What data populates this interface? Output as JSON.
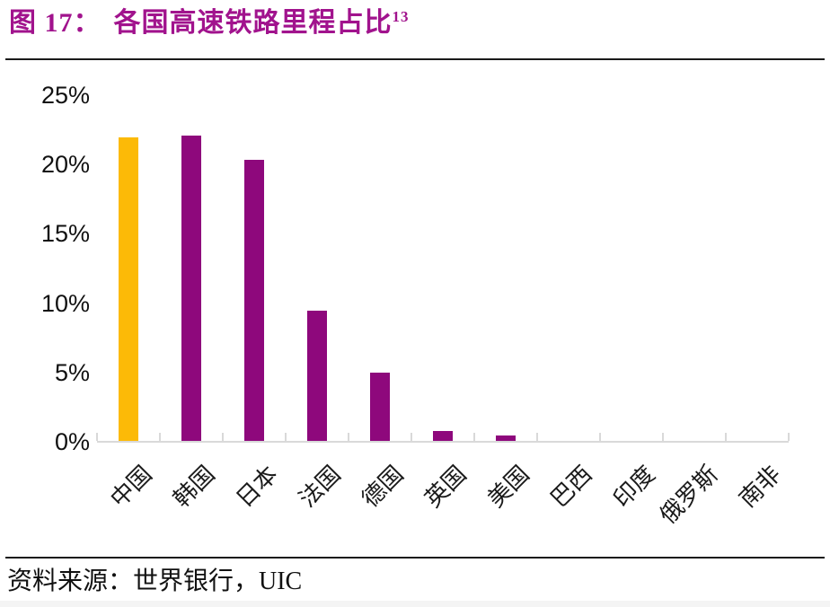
{
  "figure": {
    "title_prefix": "图 17：",
    "title_text": "各国高速铁路里程占比",
    "title_superscript": "13",
    "source_label": "资料来源：",
    "source_text": "世界银行，UIC"
  },
  "colors": {
    "title": "#A1138D",
    "bar_default": "#8E087C",
    "bar_highlight": "#FCBA07",
    "axis": "#D9D9D9",
    "text": "#111111"
  },
  "chart_data": {
    "type": "bar",
    "title": "各国高速铁路里程占比",
    "categories": [
      "中国",
      "韩国",
      "日本",
      "法国",
      "德国",
      "英国",
      "美国",
      "巴西",
      "印度",
      "俄罗斯",
      "南非"
    ],
    "values": [
      21.9,
      22.0,
      20.3,
      9.4,
      4.9,
      0.7,
      0.4,
      0,
      0,
      0,
      0
    ],
    "unit": "%",
    "highlight_index": 0,
    "y_ticks": [
      "25%",
      "20%",
      "15%",
      "10%",
      "5%",
      "0%"
    ],
    "y_tick_values": [
      25,
      20,
      15,
      10,
      5,
      0
    ],
    "ylim": [
      0,
      25
    ],
    "grid": false,
    "legend": false,
    "xlabel": "",
    "ylabel": ""
  }
}
